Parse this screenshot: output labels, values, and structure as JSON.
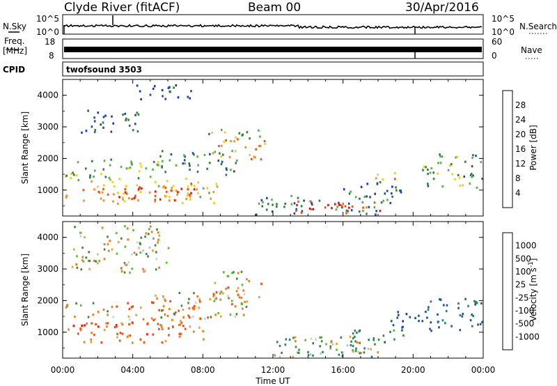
{
  "header": {
    "site": "Clyde River (fitACF)",
    "beam": "Beam 00",
    "date": "30/Apr/2016"
  },
  "noise_panel": {
    "left_label": "N.Sky",
    "right_label": "N.Search",
    "ticks": [
      "10^5",
      "10^0"
    ]
  },
  "freq_panel": {
    "left_label_1": "Freq.",
    "left_label_2": "[MHz]",
    "left_ticks": [
      "18",
      "8"
    ],
    "right_label": "Nave",
    "right_ticks": [
      "60",
      "0"
    ]
  },
  "cpid": {
    "label": "CPID",
    "value": "twofsound 3503"
  },
  "colors": {
    "power_scale": [
      "#1030e0",
      "#1d4a9c",
      "#2f7f3a",
      "#58b04a",
      "#e8d020",
      "#f09020",
      "#f05010",
      "#e01010"
    ],
    "velocity_scale": [
      "#e01010",
      "#f04a10",
      "#f07a18",
      "#f0a030",
      "#d0d0d0",
      "#c0c0c0",
      "#58c030",
      "#3a8a3a",
      "#2f7f6a",
      "#1d50a0",
      "#1030c0"
    ]
  },
  "chart_data": [
    {
      "type": "heatmap",
      "panel": "power",
      "ylabel": "Slant Range [km]",
      "yticks": [
        "1000",
        "2000",
        "3000",
        "4000"
      ],
      "ylim": [
        180,
        4500
      ],
      "colorbar": {
        "label": "Power [dB]",
        "ticks": [
          "4",
          "8",
          "12",
          "16",
          "20",
          "24",
          "28"
        ],
        "range": [
          0,
          32
        ]
      },
      "scatter_regions": [
        {
          "t0": 0.1,
          "t1": 8.8,
          "r0": 600,
          "r1": 1400,
          "v": 20
        },
        {
          "t0": 3.0,
          "t1": 7.5,
          "r0": 700,
          "r1": 1150,
          "v": 28
        },
        {
          "t0": 0.1,
          "t1": 5.5,
          "r0": 1400,
          "r1": 2050,
          "v": 14
        },
        {
          "t0": 5.5,
          "t1": 10.0,
          "r0": 1500,
          "r1": 2300,
          "v": 11
        },
        {
          "t0": 8.5,
          "t1": 11.5,
          "r0": 2000,
          "r1": 2650,
          "v": 22
        },
        {
          "t0": 8.0,
          "t1": 11.5,
          "r0": 2650,
          "r1": 2950,
          "v": 12
        },
        {
          "t0": 1.0,
          "t1": 4.5,
          "r0": 2850,
          "r1": 3600,
          "v": 7
        },
        {
          "t0": 4.0,
          "t1": 7.5,
          "r0": 3900,
          "r1": 4400,
          "v": 5
        },
        {
          "t0": 11.0,
          "t1": 19.0,
          "r0": 250,
          "r1": 850,
          "v": 10
        },
        {
          "t0": 13.0,
          "t1": 18.2,
          "r0": 300,
          "r1": 700,
          "v": 27
        },
        {
          "t0": 16.0,
          "t1": 19.5,
          "r0": 800,
          "r1": 1300,
          "v": 8
        },
        {
          "t0": 17.5,
          "t1": 19.0,
          "r0": 1300,
          "r1": 1600,
          "v": 20
        },
        {
          "t0": 20.5,
          "t1": 24.0,
          "r0": 1100,
          "r1": 2200,
          "v": 12
        }
      ]
    },
    {
      "type": "heatmap",
      "panel": "velocity",
      "xlabel": "Time UT",
      "ylabel": "Slant Range [km]",
      "xticks": [
        "00:00",
        "04:00",
        "08:00",
        "12:00",
        "16:00",
        "20:00",
        "00:00"
      ],
      "xlim": [
        0,
        24
      ],
      "yticks": [
        "1000",
        "2000",
        "3000",
        "4000"
      ],
      "ylim": [
        180,
        4500
      ],
      "colorbar": {
        "label": "Velocity [m s^-1]",
        "ticks": [
          "1000",
          "500",
          "100",
          "25",
          "-25",
          "-100",
          "-500",
          "-1000"
        ],
        "range": [
          -1000,
          1000
        ]
      },
      "scatter_regions": [
        {
          "t0": 0.1,
          "t1": 3.0,
          "r0": 1500,
          "r1": 2000,
          "v": 10
        },
        {
          "t0": 0.1,
          "t1": 8.0,
          "r0": 700,
          "r1": 1350,
          "v": -300
        },
        {
          "t0": 3.0,
          "t1": 8.5,
          "r0": 1200,
          "r1": 2050,
          "v": -250
        },
        {
          "t0": 5.0,
          "t1": 10.5,
          "r0": 1500,
          "r1": 2300,
          "v": -10
        },
        {
          "t0": 8.5,
          "t1": 11.5,
          "r0": 2000,
          "r1": 2600,
          "v": -150
        },
        {
          "t0": 8.0,
          "t1": 11.0,
          "r0": 2650,
          "r1": 2950,
          "v": 5
        },
        {
          "t0": 0.5,
          "t1": 6.0,
          "r0": 2900,
          "r1": 4400,
          "v": 0
        },
        {
          "t0": 12.0,
          "t1": 18.0,
          "r0": 250,
          "r1": 900,
          "v": 150
        },
        {
          "t0": 13.0,
          "t1": 18.0,
          "r0": 350,
          "r1": 800,
          "v": 60
        },
        {
          "t0": 16.5,
          "t1": 19.5,
          "r0": 700,
          "r1": 1100,
          "v": 300
        },
        {
          "t0": 18.5,
          "t1": 21.0,
          "r0": 1000,
          "r1": 1700,
          "v": 800
        },
        {
          "t0": 20.5,
          "t1": 24.0,
          "r0": 1100,
          "r1": 2100,
          "v": 500
        }
      ]
    }
  ]
}
